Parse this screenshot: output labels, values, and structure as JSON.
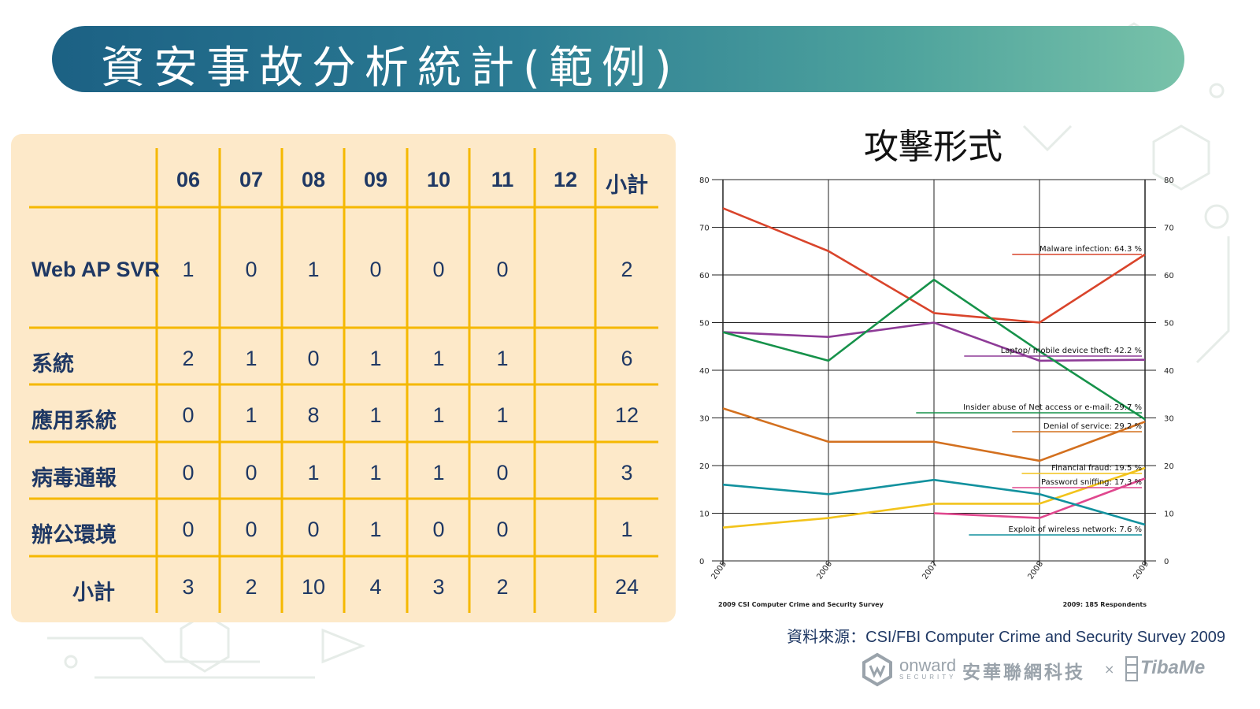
{
  "slide": {
    "title": "資安事故分析統計(範例)",
    "source": "資料來源：CSI/FBI Computer Crime and Security Survey 2009"
  },
  "table": {
    "columns": [
      "06",
      "07",
      "08",
      "09",
      "10",
      "11",
      "12",
      "小計"
    ],
    "rows": [
      {
        "label": "Web AP SVR",
        "values": [
          "1",
          "0",
          "1",
          "0",
          "0",
          "0",
          "",
          "2"
        ]
      },
      {
        "label": "系統",
        "values": [
          "2",
          "1",
          "0",
          "1",
          "1",
          "1",
          "",
          "6"
        ]
      },
      {
        "label": "應用系統",
        "values": [
          "0",
          "1",
          "8",
          "1",
          "1",
          "1",
          "",
          "12"
        ]
      },
      {
        "label": "病毒通報",
        "values": [
          "0",
          "0",
          "1",
          "1",
          "1",
          "0",
          "",
          "3"
        ]
      },
      {
        "label": "辦公環境",
        "values": [
          "0",
          "0",
          "0",
          "1",
          "0",
          "0",
          "",
          "1"
        ]
      },
      {
        "label": "小計",
        "values": [
          "3",
          "2",
          "10",
          "4",
          "3",
          "2",
          "",
          "24"
        ]
      }
    ],
    "grid_color": "#f5b800"
  },
  "chart_data": {
    "type": "line",
    "title": "攻擊形式",
    "x": [
      "2005",
      "2006",
      "2007",
      "2008",
      "2009"
    ],
    "ylim": [
      0,
      80
    ],
    "yticks": [
      0,
      10,
      20,
      30,
      40,
      50,
      60,
      70,
      80
    ],
    "grid": true,
    "footer_left": "2009 CSI Computer Crime and Security Survey",
    "footer_right": "2009: 185 Respondents",
    "series": [
      {
        "name": "Malware infection",
        "values": [
          74,
          65,
          52,
          50,
          64.3
        ],
        "color": "#d9442b",
        "label": "Malware infection:   64.3 %"
      },
      {
        "name": "Laptop/ mobile device theft",
        "values": [
          48,
          47,
          50,
          42,
          42.2
        ],
        "color": "#8e3b97",
        "label": "Laptop/ mobile device theft:   42.2 %"
      },
      {
        "name": "Insider abuse of Net access or e-mail",
        "values": [
          48,
          42,
          59,
          44,
          29.7
        ],
        "color": "#16924a",
        "label": "Insider abuse of Net access or e-mail:   29.7 %"
      },
      {
        "name": "Denial of service",
        "values": [
          32,
          25,
          25,
          21,
          29.2
        ],
        "color": "#d3701f",
        "label": "Denial of service:   29.2 %"
      },
      {
        "name": "Financial fraud",
        "values": [
          7,
          9,
          12,
          12,
          19.5
        ],
        "color": "#f2c31b",
        "label": "Financial fraud:   19.5 %"
      },
      {
        "name": "Password sniffing",
        "values": [
          null,
          null,
          10,
          9,
          17.3
        ],
        "color": "#e0478e",
        "label": "Password sniffing:   17.3 %"
      },
      {
        "name": "Exploit of wireless network",
        "values": [
          16,
          14,
          17,
          14,
          7.6
        ],
        "color": "#12919e",
        "label": "Exploit of wireless network:   7.6 %"
      }
    ]
  },
  "footer": {
    "onward": "onward",
    "onward_sub": "SECURITY",
    "company": "安華聯網科技",
    "separator": "×",
    "tibame": "TibaMe"
  }
}
